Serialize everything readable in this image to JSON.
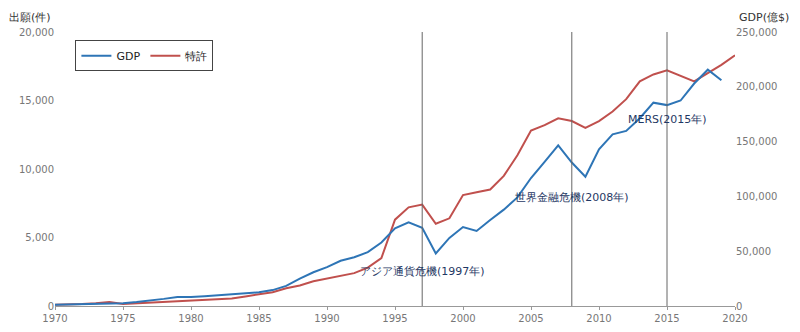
{
  "chart_data": {
    "type": "line",
    "ylabel": "出願(件)",
    "y2label": "GDP(億$)",
    "x": [
      1970,
      1971,
      1972,
      1973,
      1974,
      1975,
      1976,
      1977,
      1978,
      1979,
      1980,
      1981,
      1982,
      1983,
      1984,
      1985,
      1986,
      1987,
      1988,
      1989,
      1990,
      1991,
      1992,
      1993,
      1994,
      1995,
      1996,
      1997,
      1998,
      1999,
      2000,
      2001,
      2002,
      2003,
      2004,
      2005,
      2006,
      2007,
      2008,
      2009,
      2010,
      2011,
      2012,
      2013,
      2014,
      2015,
      2016,
      2017,
      2018,
      2019,
      2020
    ],
    "series": [
      {
        "name": "GDP",
        "color": "#2e75b6",
        "axis": "y2",
        "values": [
          1100,
          1300,
          1400,
          1800,
          2400,
          2600,
          3600,
          4800,
          6500,
          8300,
          8100,
          9000,
          9800,
          10900,
          12000,
          12500,
          14500,
          18400,
          24900,
          30800,
          35400,
          41300,
          44500,
          49100,
          57900,
          70800,
          76300,
          71300,
          47900,
          62100,
          72000,
          68500,
          78400,
          87900,
          99100,
          116800,
          131600,
          146500,
          130900,
          118000,
          143000,
          156600,
          159800,
          171300,
          185500,
          183300,
          187500,
          203000,
          215600,
          205900,
          null
        ]
      },
      {
        "name": "特許",
        "color": "#c0504d",
        "values": [
          100,
          100,
          150,
          200,
          300,
          150,
          200,
          250,
          300,
          350,
          400,
          450,
          500,
          550,
          700,
          850,
          1000,
          1300,
          1500,
          1800,
          2000,
          2200,
          2400,
          2800,
          3500,
          6300,
          7200,
          7400,
          6000,
          6400,
          8100,
          8300,
          8500,
          9500,
          11000,
          12800,
          13200,
          13700,
          13500,
          13000,
          13500,
          14200,
          15100,
          16400,
          16900,
          17200,
          16800,
          16400,
          17000,
          17600,
          18300
        ]
      }
    ],
    "xlim": [
      1970,
      2020
    ],
    "xticks": [
      1970,
      1975,
      1980,
      1985,
      1990,
      1995,
      2000,
      2005,
      2010,
      2015,
      2020
    ],
    "ylim": [
      0,
      20000
    ],
    "yticks": [
      0,
      {
        "value": 5000,
        "label": "5,000"
      },
      {
        "value": 10000,
        "label": "10,000"
      },
      {
        "value": 15000,
        "label": "15,000"
      },
      {
        "value": 20000,
        "label": "20,000"
      }
    ],
    "y2lim": [
      0,
      250000
    ],
    "y2ticks": [
      0,
      {
        "value": 50000,
        "label": "50,000"
      },
      {
        "value": 100000,
        "label": "100,000"
      },
      {
        "value": 150000,
        "label": "150,000"
      },
      {
        "value": 200000,
        "label": "200,000"
      },
      {
        "value": 250000,
        "label": "250,000"
      }
    ],
    "annotations": [
      {
        "text": "アジア通貨危機(1997年)",
        "x": 1997,
        "y": 2500
      },
      {
        "text": "世界金融危機(2008年)",
        "x": 2008,
        "y": 7900
      },
      {
        "text": "MERS(2015年)",
        "x": 2015,
        "y": 13600
      }
    ],
    "grid": false,
    "legend": "upper left"
  }
}
